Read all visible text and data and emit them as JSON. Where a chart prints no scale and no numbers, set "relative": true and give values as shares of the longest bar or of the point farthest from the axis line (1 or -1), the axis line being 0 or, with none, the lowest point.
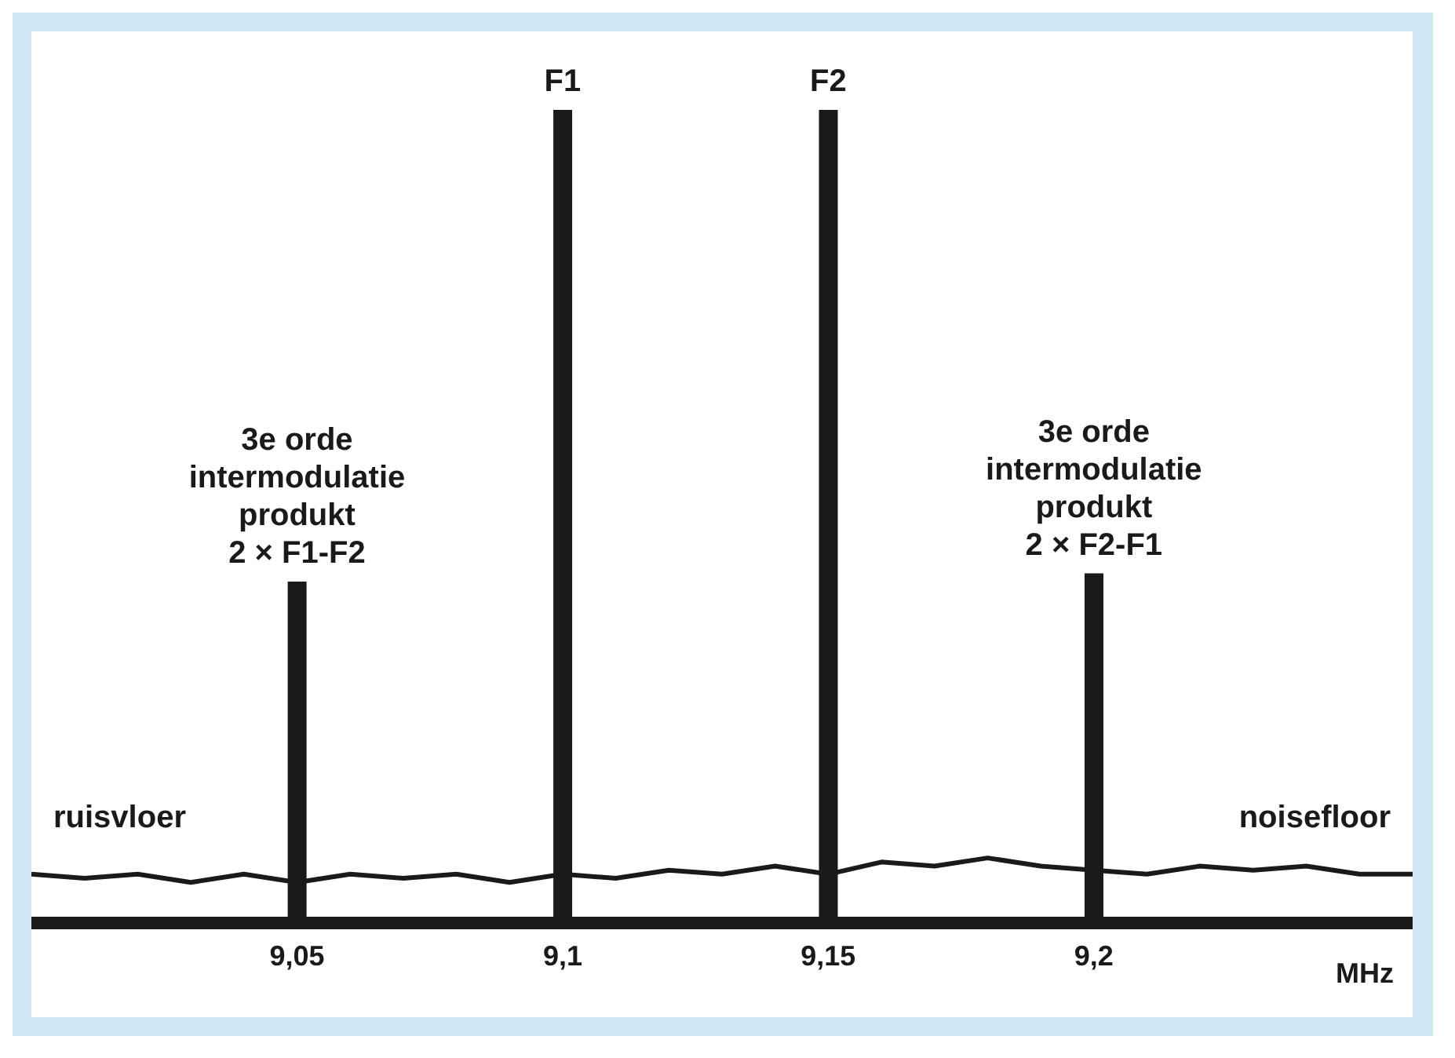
{
  "chart_data": {
    "type": "bar",
    "relative": true,
    "xlabel": "MHz",
    "x": [
      9.05,
      9.1,
      9.15,
      9.2
    ],
    "values": [
      0.42,
      1,
      1,
      0.43
    ],
    "color": "#1a1a1a",
    "xlim": [
      9.0,
      9.26
    ],
    "xticks": [
      {
        "value": 9.05,
        "label": "9,05"
      },
      {
        "value": 9.1,
        "label": "9,1"
      },
      {
        "value": 9.15,
        "label": "9,15"
      },
      {
        "value": 9.2,
        "label": "9,2"
      }
    ],
    "series": [
      {
        "type": "line",
        "color": "#1a1a1a",
        "x": [
          9.0,
          9.01,
          9.02,
          9.03,
          9.04,
          9.05,
          9.06,
          9.07,
          9.08,
          9.09,
          9.1,
          9.11,
          9.12,
          9.13,
          9.14,
          9.15,
          9.16,
          9.17,
          9.18,
          9.19,
          9.2,
          9.21,
          9.22,
          9.23,
          9.24,
          9.25,
          9.26
        ],
        "values": [
          0.06,
          0.055,
          0.06,
          0.05,
          0.06,
          0.05,
          0.06,
          0.055,
          0.06,
          0.05,
          0.06,
          0.055,
          0.065,
          0.06,
          0.07,
          0.06,
          0.075,
          0.07,
          0.08,
          0.07,
          0.065,
          0.06,
          0.07,
          0.065,
          0.07,
          0.06,
          0.06
        ]
      }
    ],
    "annotations": [
      {
        "text": "F1",
        "x": 9.1,
        "y": 1
      },
      {
        "text": "F2",
        "x": 9.15,
        "y": 1
      },
      {
        "text": "3e orde\nintermodulatie\nprodukt\n2 × F1-F2",
        "x": 9.05,
        "y": 0.42
      },
      {
        "text": "3e orde\nintermodulatie\nprodukt\n2 × F2-F1",
        "x": 9.2,
        "y": 0.43
      },
      "ruisvloer",
      "noisefloor"
    ],
    "grid": false,
    "legend": false
  }
}
